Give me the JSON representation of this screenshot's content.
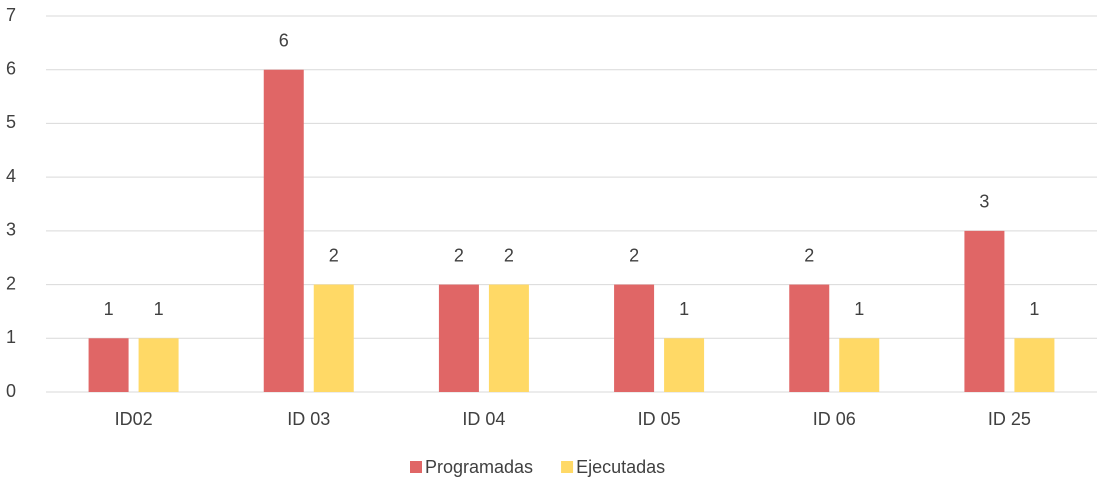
{
  "chart_data": {
    "type": "bar",
    "categories": [
      "ID02",
      "ID 03",
      "ID 04",
      "ID 05",
      "ID 06",
      "ID 25"
    ],
    "series": [
      {
        "name": "Programadas",
        "color": "#e06666",
        "values": [
          1,
          6,
          2,
          2,
          2,
          3
        ]
      },
      {
        "name": "Ejecutadas",
        "color": "#ffd966",
        "values": [
          1,
          2,
          2,
          1,
          1,
          1
        ]
      }
    ],
    "ylim": [
      0,
      7
    ],
    "yticks": [
      0,
      1,
      2,
      3,
      4,
      5,
      6,
      7
    ],
    "grid": true,
    "legend": "bottom"
  }
}
